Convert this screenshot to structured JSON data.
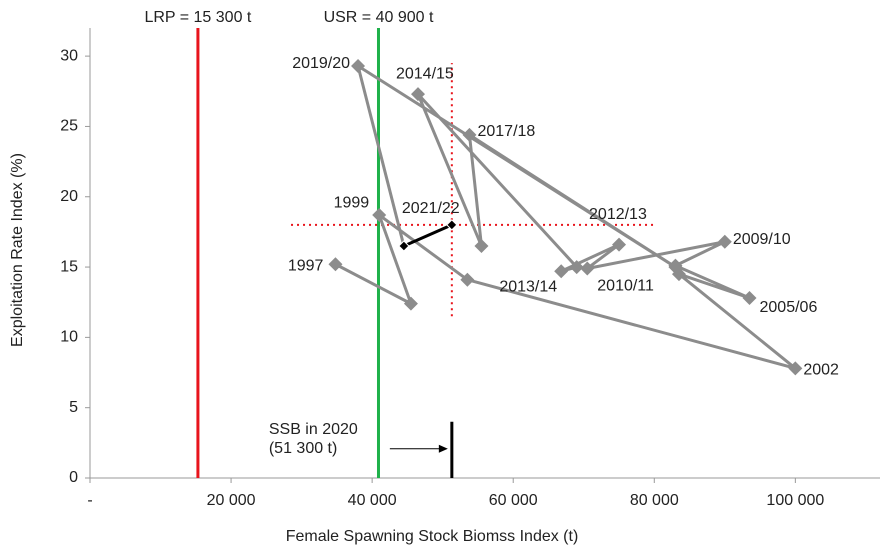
{
  "chart_data": {
    "type": "trajectory",
    "y_label": "Exploitation Rate Index (%)",
    "x_label": "Female Spawning Stock Biomss Index (t)",
    "xlim": [
      0,
      112000
    ],
    "ylim": [
      0,
      32
    ],
    "xticks": [
      {
        "value": 0,
        "label": "-"
      },
      {
        "value": 20000,
        "label": "20 000"
      },
      {
        "value": 40000,
        "label": "40 000"
      },
      {
        "value": 60000,
        "label": "60 000"
      },
      {
        "value": 80000,
        "label": "80 000"
      },
      {
        "value": 100000,
        "label": "100 000"
      }
    ],
    "yticks": [
      0,
      5,
      10,
      15,
      20,
      25,
      30
    ],
    "series": [
      {
        "color": "#8c8c8c",
        "highlight_start": 18,
        "highlight_color": "#000000",
        "x": [
          34800,
          45500,
          41000,
          53500,
          100000,
          83500,
          93500,
          83000,
          90000,
          70500,
          75000,
          66800,
          69000,
          46500,
          55500,
          53800,
          83000,
          38000,
          44500,
          51300
        ],
        "values": [
          15.2,
          12.4,
          18.7,
          14.1,
          7.8,
          14.5,
          12.8,
          15.1,
          16.8,
          14.9,
          16.6,
          14.7,
          15.0,
          27.3,
          16.5,
          24.4,
          15.0,
          29.3,
          16.5,
          18.0
        ],
        "point_labels": [
          "1997",
          null,
          "1999",
          null,
          "2002",
          null,
          "2005/06",
          null,
          "2009/10",
          "2010/11",
          "2012/13",
          "2013/14",
          null,
          "2014/15",
          null,
          "2017/18",
          null,
          "2019/20",
          null,
          "2021/22"
        ]
      }
    ],
    "reference_lines": [
      {
        "label": "LRP = 15 300 t",
        "x": 15300,
        "color": "#e8141c"
      },
      {
        "label": "USR = 40 900 t",
        "x": 40900,
        "color": "#1fb14a"
      }
    ],
    "crosshair": {
      "x": 51300,
      "y": 18,
      "xrange": [
        28500,
        80000
      ],
      "yrange": [
        11.5,
        29.5
      ],
      "color": "#e8141c"
    },
    "ssb_marker": {
      "x": 51300,
      "y_top": 4,
      "label_lines": [
        "SSB in 2020",
        "(51 300 t)"
      ]
    }
  }
}
